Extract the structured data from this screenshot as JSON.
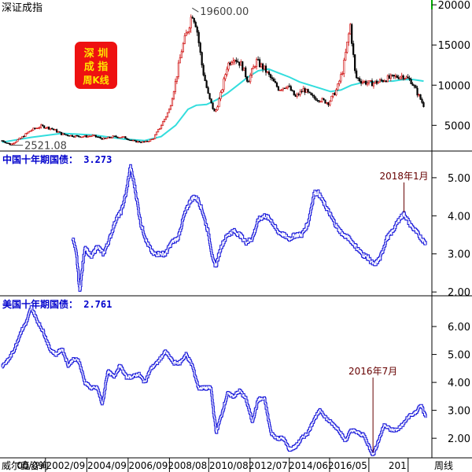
{
  "colors": {
    "candle_up": "#cc0000",
    "candle_down": "#000000",
    "ma_line": "#33dddd",
    "bond_line": "#1a1adb",
    "badge_bg": "#ee1111",
    "badge_text": "#ffe600",
    "annotation": "#660000",
    "bond_title": "#0000cc"
  },
  "chart_data": [
    {
      "type": "candlestick",
      "title": "深证成指",
      "badge": [
        "深 圳",
        "成 指",
        "周K线"
      ],
      "yticks": [
        5000,
        10000,
        15000,
        20000
      ],
      "ylim": [
        1800,
        20600
      ],
      "xlim": [
        1998.5,
        2019.4
      ],
      "annotations": [
        {
          "label": "19600.00",
          "x": 2007.8,
          "y": 19600
        },
        {
          "label": "2521.08",
          "x": 1999.0,
          "y": 2521
        }
      ],
      "series": [
        {
          "name": "price",
          "x": [
            1998.6,
            1999.0,
            1999.5,
            2000.0,
            2000.5,
            2001.0,
            2001.5,
            2002.0,
            2002.5,
            2003.0,
            2003.5,
            2004.0,
            2004.5,
            2005.0,
            2005.5,
            2005.9,
            2006.3,
            2006.7,
            2007.0,
            2007.3,
            2007.6,
            2007.8,
            2008.0,
            2008.3,
            2008.6,
            2008.9,
            2009.2,
            2009.5,
            2009.8,
            2010.2,
            2010.5,
            2010.9,
            2011.3,
            2011.7,
            2012.0,
            2012.4,
            2012.8,
            2013.2,
            2013.6,
            2014.0,
            2014.4,
            2014.8,
            2015.1,
            2015.45,
            2015.7,
            2016.0,
            2016.4,
            2016.8,
            2017.2,
            2017.6,
            2018.0,
            2018.4,
            2018.8,
            2019.0
          ],
          "values": [
            3100,
            2600,
            3400,
            4400,
            4900,
            4600,
            3900,
            3700,
            3600,
            3700,
            3300,
            3600,
            3500,
            3000,
            2900,
            3300,
            5000,
            7000,
            10500,
            14500,
            17000,
            19000,
            17500,
            12000,
            8500,
            6500,
            9000,
            12500,
            13500,
            12500,
            10500,
            13000,
            12000,
            10500,
            9500,
            10000,
            8500,
            9500,
            8500,
            8200,
            7800,
            9500,
            12000,
            17500,
            11000,
            10500,
            10200,
            10400,
            10800,
            11000,
            11200,
            10500,
            8500,
            7500
          ]
        },
        {
          "name": "MA",
          "x": [
            1998.6,
            2000.0,
            2001.5,
            2003.0,
            2004.5,
            2005.5,
            2006.3,
            2007.0,
            2007.6,
            2008.0,
            2008.5,
            2009.0,
            2009.5,
            2010.0,
            2010.5,
            2011.0,
            2011.5,
            2012.0,
            2012.5,
            2013.0,
            2014.0,
            2014.5,
            2015.0,
            2015.5,
            2016.0,
            2016.5,
            2017.0,
            2017.5,
            2018.0,
            2018.5,
            2019.0
          ],
          "values": [
            2900,
            3500,
            4000,
            3800,
            3300,
            3100,
            3600,
            5000,
            7000,
            7500,
            7600,
            8200,
            9000,
            10000,
            11000,
            11800,
            12000,
            11500,
            11000,
            10400,
            9600,
            9200,
            9400,
            10000,
            10300,
            10400,
            10500,
            10500,
            10700,
            10700,
            10500
          ]
        }
      ]
    },
    {
      "type": "line",
      "title": "中国十年期国债： 3.273",
      "yticks": [
        2.0,
        3.0,
        4.0,
        5.0
      ],
      "ylim": [
        1.9,
        5.7
      ],
      "xlim": [
        1998.5,
        2019.4
      ],
      "annotations": [
        {
          "label": "2018年1月",
          "x": 2018.05,
          "y": 4.05
        }
      ],
      "series": [
        {
          "name": "cn10y",
          "x": [
            2002.0,
            2002.2,
            2002.35,
            2002.6,
            2002.9,
            2003.2,
            2003.5,
            2003.8,
            2004.1,
            2004.35,
            2004.6,
            2004.8,
            2005.0,
            2005.3,
            2005.6,
            2005.9,
            2006.2,
            2006.5,
            2006.8,
            2007.1,
            2007.4,
            2007.7,
            2007.9,
            2008.1,
            2008.3,
            2008.6,
            2008.8,
            2008.95,
            2009.2,
            2009.5,
            2009.8,
            2010.1,
            2010.4,
            2010.7,
            2011.0,
            2011.3,
            2011.6,
            2011.9,
            2012.2,
            2012.5,
            2012.8,
            2013.1,
            2013.4,
            2013.7,
            2013.9,
            2014.2,
            2014.5,
            2014.8,
            2015.1,
            2015.4,
            2015.7,
            2016.0,
            2016.3,
            2016.6,
            2016.9,
            2017.2,
            2017.5,
            2017.8,
            2018.05,
            2018.3,
            2018.6,
            2018.9,
            2019.1
          ],
          "values": [
            3.45,
            2.95,
            2.0,
            3.2,
            2.9,
            3.2,
            3.0,
            3.4,
            3.9,
            4.1,
            4.6,
            5.3,
            4.8,
            3.8,
            3.3,
            3.0,
            3.0,
            3.0,
            3.3,
            3.4,
            4.0,
            4.4,
            4.5,
            4.4,
            4.1,
            3.5,
            2.8,
            2.7,
            3.2,
            3.5,
            3.6,
            3.5,
            3.3,
            3.4,
            3.9,
            4.0,
            3.9,
            3.6,
            3.5,
            3.4,
            3.5,
            3.5,
            3.8,
            4.6,
            4.6,
            4.3,
            4.0,
            3.7,
            3.5,
            3.4,
            3.2,
            3.0,
            2.9,
            2.7,
            2.9,
            3.4,
            3.6,
            3.9,
            4.05,
            3.8,
            3.6,
            3.4,
            3.27
          ]
        }
      ]
    },
    {
      "type": "line",
      "title": "美国十年期国债： 2.761",
      "yticks": [
        2.0,
        3.0,
        4.0,
        5.0,
        6.0
      ],
      "ylim": [
        1.3,
        7.1
      ],
      "xlim": [
        1998.5,
        2019.4
      ],
      "annotations": [
        {
          "label": "2016年7月",
          "x": 2016.55,
          "y": 1.5
        }
      ],
      "series": [
        {
          "name": "us10y",
          "x": [
            1998.6,
            1998.9,
            1999.2,
            1999.5,
            1999.8,
            2000.0,
            2000.3,
            2000.6,
            2000.9,
            2001.2,
            2001.5,
            2001.8,
            2002.0,
            2002.3,
            2002.6,
            2002.9,
            2003.2,
            2003.45,
            2003.7,
            2004.0,
            2004.3,
            2004.6,
            2004.9,
            2005.2,
            2005.5,
            2005.8,
            2006.1,
            2006.5,
            2006.9,
            2007.2,
            2007.5,
            2007.8,
            2008.1,
            2008.4,
            2008.7,
            2008.95,
            2009.2,
            2009.5,
            2009.8,
            2010.1,
            2010.4,
            2010.7,
            2011.0,
            2011.3,
            2011.6,
            2011.9,
            2012.2,
            2012.5,
            2012.8,
            2013.1,
            2013.4,
            2013.7,
            2014.0,
            2014.3,
            2014.6,
            2014.9,
            2015.2,
            2015.5,
            2015.8,
            2016.1,
            2016.35,
            2016.55,
            2016.8,
            2017.1,
            2017.4,
            2017.7,
            2018.0,
            2018.3,
            2018.6,
            2018.85,
            2019.1
          ],
          "values": [
            4.6,
            4.8,
            5.2,
            5.8,
            6.2,
            6.7,
            6.2,
            5.8,
            5.2,
            5.0,
            5.2,
            4.6,
            4.8,
            4.8,
            4.0,
            3.8,
            3.8,
            3.2,
            4.4,
            4.2,
            4.6,
            4.2,
            4.2,
            4.3,
            4.0,
            4.5,
            4.7,
            5.1,
            4.7,
            4.7,
            5.0,
            4.6,
            3.8,
            3.8,
            3.8,
            2.2,
            2.8,
            3.6,
            3.5,
            3.7,
            3.4,
            2.6,
            3.4,
            3.4,
            2.2,
            2.0,
            2.0,
            1.6,
            1.7,
            2.0,
            2.2,
            2.7,
            3.0,
            2.7,
            2.5,
            2.3,
            1.9,
            2.3,
            2.2,
            2.1,
            1.7,
            1.4,
            1.9,
            2.5,
            2.3,
            2.3,
            2.5,
            2.8,
            2.9,
            3.2,
            2.76
          ]
        }
      ]
    }
  ],
  "xaxis": {
    "ticks": [
      {
        "label": "00/09",
        "x": 2000.7
      },
      {
        "label": "2002/09",
        "x": 2002.7
      },
      {
        "label": "2004/09",
        "x": 2004.7
      },
      {
        "label": "2006/09",
        "x": 2006.7
      },
      {
        "label": "2008/08",
        "x": 2008.6
      },
      {
        "label": "2010/08",
        "x": 2010.6
      },
      {
        "label": "2012/07",
        "x": 2012.5
      },
      {
        "label": "2014/06",
        "x": 2014.45
      },
      {
        "label": "2016/05",
        "x": 2016.35
      },
      {
        "label": "201",
        "x": 2018.25
      }
    ],
    "left_label": "威尔鑫咨询",
    "right_label": "周线"
  }
}
